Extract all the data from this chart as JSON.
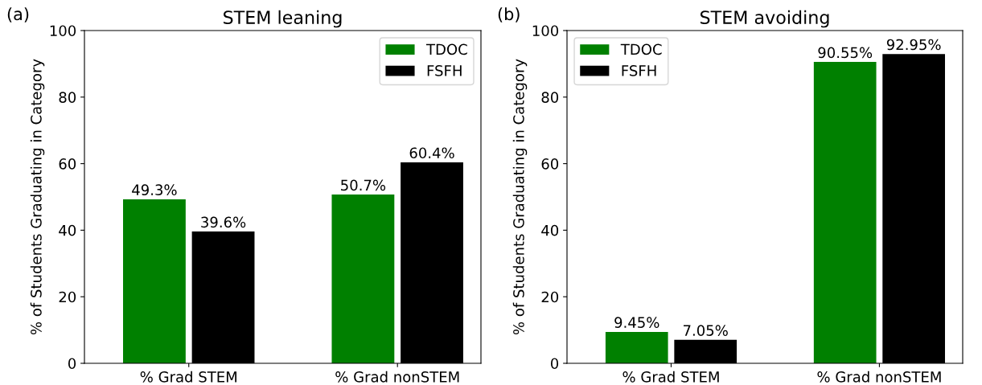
{
  "chart_data": [
    {
      "type": "bar",
      "title": "STEM leaning",
      "ylabel": "% of Students Graduating in Category",
      "annotations": [
        "(a)"
      ],
      "categories": [
        "% Grad STEM",
        "% Grad nonSTEM"
      ],
      "series": [
        {
          "name": "TDOC",
          "color": "#008000",
          "values": [
            49.3,
            50.7
          ],
          "value_labels": [
            "49.3%",
            "50.7%"
          ]
        },
        {
          "name": "FSFH",
          "color": "#000000",
          "values": [
            39.6,
            60.4
          ],
          "value_labels": [
            "39.6%",
            "60.4%"
          ]
        }
      ],
      "ylim": [
        0,
        100
      ],
      "yticks": [
        0,
        20,
        40,
        60,
        80,
        100
      ],
      "legend": "top right",
      "grid": false
    },
    {
      "type": "bar",
      "title": "STEM avoiding",
      "ylabel": "% of Students Graduating in Category",
      "annotations": [
        "(b)"
      ],
      "categories": [
        "% Grad STEM",
        "% Grad nonSTEM"
      ],
      "series": [
        {
          "name": "TDOC",
          "color": "#008000",
          "values": [
            9.45,
            90.55
          ],
          "value_labels": [
            "9.45%",
            "90.55%"
          ]
        },
        {
          "name": "FSFH",
          "color": "#000000",
          "values": [
            7.05,
            92.95
          ],
          "value_labels": [
            "7.05%",
            "92.95%"
          ]
        }
      ],
      "ylim": [
        0,
        100
      ],
      "yticks": [
        0,
        20,
        40,
        60,
        80,
        100
      ],
      "legend": "top left",
      "grid": false
    }
  ]
}
